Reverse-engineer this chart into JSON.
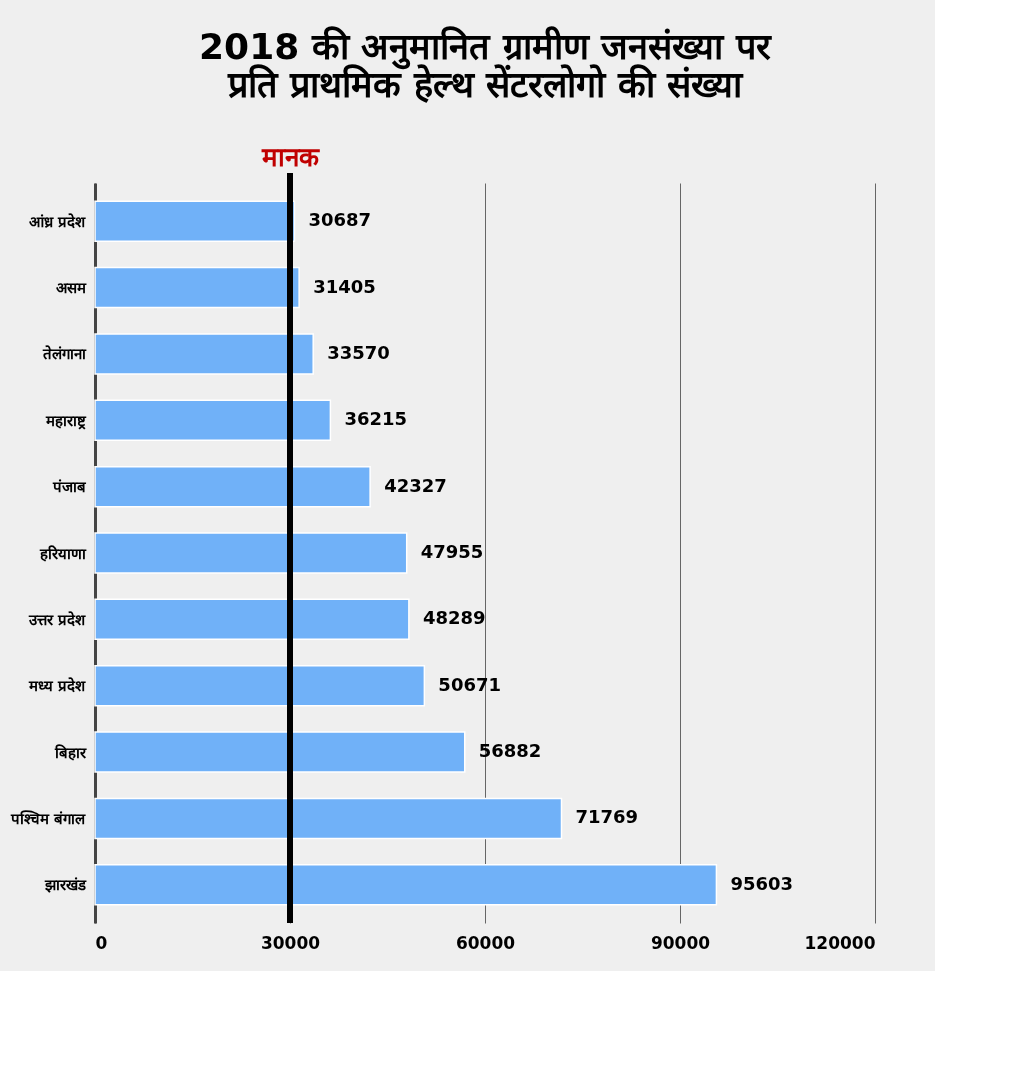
{
  "chart_data": {
    "type": "bar",
    "orientation": "horizontal",
    "title": [
      "2018 की अनुमानित ग्रामीण जनसंख्या पर",
      "प्रति प्राथमिक हेल्थ सेंटरलोगो की संख्या"
    ],
    "categories": [
      "आंध्र प्रदेश",
      "असम",
      "तेलंगाना",
      "महाराष्ट्र",
      "पंजाब",
      "हरियाणा",
      "उत्तर प्रदेश",
      "मध्य प्रदेश",
      "बिहार",
      "पश्चिम बंगाल",
      "झारखंड"
    ],
    "values": [
      30687,
      31405,
      33570,
      36215,
      42327,
      47955,
      48289,
      50671,
      56882,
      71769,
      95603
    ],
    "color": "#70b1f8",
    "xlim": [
      0,
      120000
    ],
    "xticks": [
      0,
      30000,
      60000,
      90000,
      120000
    ],
    "grid": "x",
    "data_labels": true,
    "ref_lines": [
      {
        "axis": "x",
        "value": 30000,
        "label": "मानक",
        "color": "#000000"
      }
    ]
  }
}
